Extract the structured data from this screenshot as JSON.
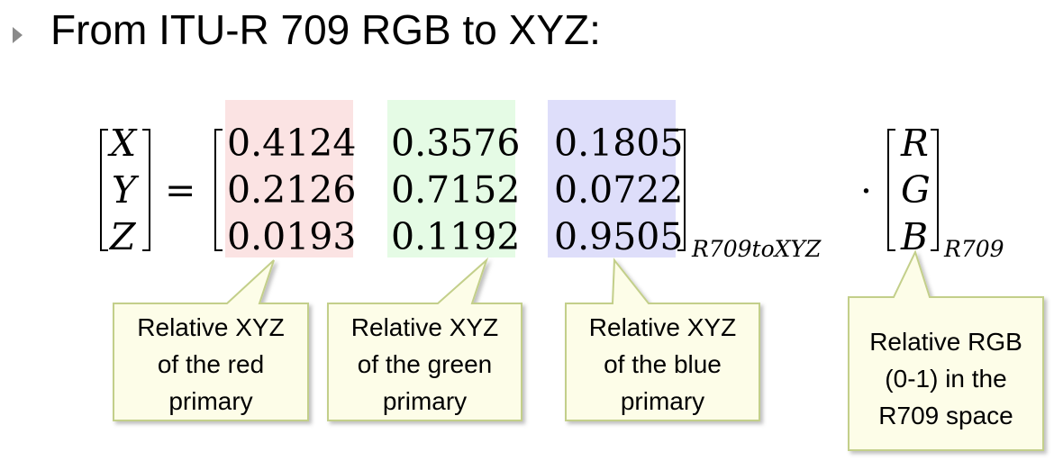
{
  "title": "From ITU-R 709 RGB to XYZ:",
  "lhs": [
    "X",
    "Y",
    "Z"
  ],
  "equals": "=",
  "dot": "·",
  "matrix": {
    "rows": [
      [
        "0.4124",
        "0.3576",
        "0.1805"
      ],
      [
        "0.2126",
        "0.7152",
        "0.0722"
      ],
      [
        "0.0193",
        "0.1192",
        "0.9505"
      ]
    ],
    "subscript": "R709toXYZ"
  },
  "rgb_vector": {
    "entries": [
      "R",
      "G",
      "B"
    ],
    "subscript": "R709"
  },
  "colors": {
    "red_column": "#fbe3e3",
    "green_column": "#e5fbe5",
    "blue_column": "#dedefa",
    "callout_fill": "#fdfde8",
    "callout_border": "#c3cf8a",
    "bullet": "#8a8a8a"
  },
  "callouts": {
    "red": "Relative XYZ\nof the red\nprimary",
    "green": "Relative XYZ\nof the green\nprimary",
    "blue": "Relative XYZ\nof the blue\nprimary",
    "rgb": "Relative RGB\n(0-1) in the\nR709 space"
  }
}
